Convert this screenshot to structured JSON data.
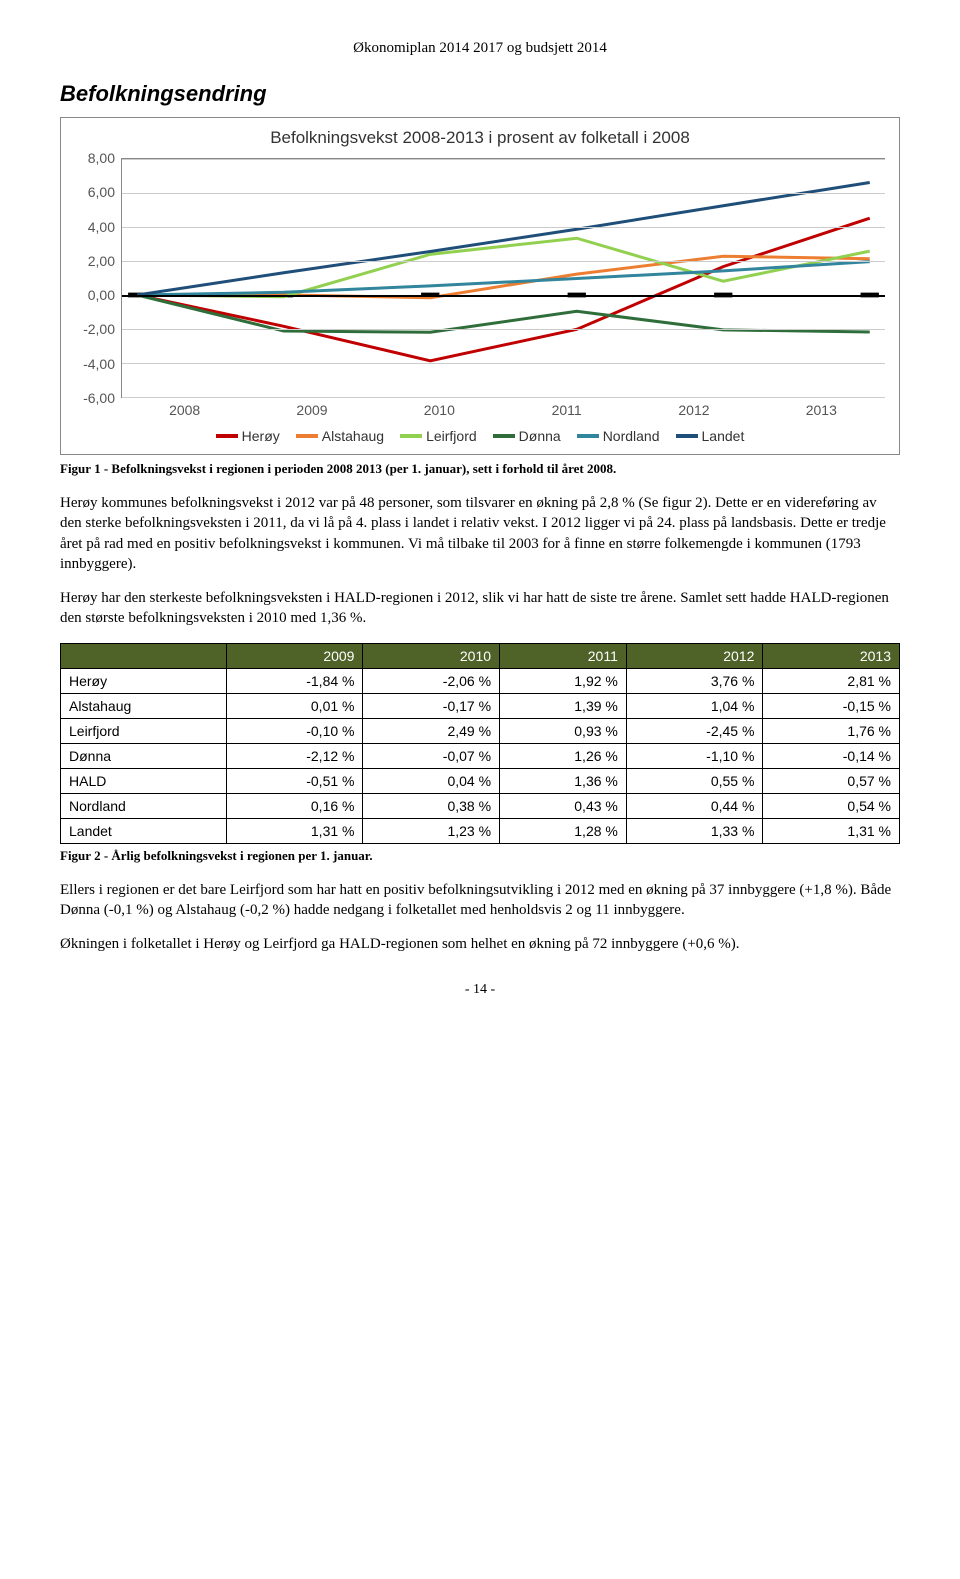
{
  "header": "Økonomiplan 2014 2017 og budsjett 2014",
  "section_title": "Befolkningsendring",
  "chart": {
    "type": "line",
    "title": "Befolkningsvekst 2008-2013 i prosent av folketall i 2008",
    "x_categories": [
      "2008",
      "2009",
      "2010",
      "2011",
      "2012",
      "2013"
    ],
    "y_min": -6.0,
    "y_max": 8.0,
    "y_step": 2.0,
    "y_ticks": [
      "8,00",
      "6,00",
      "4,00",
      "2,00",
      "0,00",
      "-2,00",
      "-4,00",
      "-6,00"
    ],
    "title_fontsize": 17,
    "label_fontsize": 14,
    "background_color": "#ffffff",
    "grid_color": "#cccccc",
    "line_width": 3,
    "series": [
      {
        "name": "Herøy",
        "color": "#c00000",
        "values": [
          0.0,
          -1.84,
          -3.87,
          -2.02,
          1.67,
          4.52
        ]
      },
      {
        "name": "Alstahaug",
        "color": "#ed7d31",
        "values": [
          0.0,
          0.01,
          -0.16,
          1.23,
          2.28,
          2.13
        ]
      },
      {
        "name": "Leirfjord",
        "color": "#92d050",
        "values": [
          0.0,
          -0.1,
          2.39,
          3.34,
          0.81,
          2.58
        ]
      },
      {
        "name": "Dønna",
        "color": "#2f6e3b",
        "values": [
          0.0,
          -2.12,
          -2.19,
          -0.96,
          -2.05,
          -2.18
        ]
      },
      {
        "name": "Nordland",
        "color": "#31859c",
        "values": [
          0.0,
          0.16,
          0.54,
          0.97,
          1.42,
          1.96
        ]
      },
      {
        "name": "Landet",
        "color": "#1f4e79",
        "values": [
          0.0,
          1.31,
          2.56,
          3.87,
          5.25,
          6.62
        ]
      }
    ]
  },
  "fig1_caption": "Figur 1 - Befolkningsvekst i regionen i perioden 2008 2013 (per 1. januar), sett i forhold til året 2008.",
  "para1": "Herøy kommunes befolkningsvekst i 2012 var på 48 personer, som tilsvarer en økning på 2,8 % (Se figur 2). Dette er en videreføring av den sterke befolkningsveksten i 2011, da vi lå på 4. plass i landet i relativ vekst.  I 2012 ligger vi på 24. plass på landsbasis. Dette er tredje året på rad med en positiv befolkningsvekst i kommunen. Vi må tilbake til 2003 for å finne en større folkemengde i kommunen (1793 innbyggere).",
  "para2": "Herøy har den sterkeste befolkningsveksten i HALD-regionen i 2012, slik vi har hatt de siste tre årene. Samlet sett hadde HALD-regionen den største befolkningsveksten i 2010 med 1,36 %.",
  "table": {
    "header_bg": "#4f6228",
    "header_fg": "#ffffff",
    "columns": [
      "",
      "2009",
      "2010",
      "2011",
      "2012",
      "2013"
    ],
    "rows": [
      [
        "Herøy",
        "-1,84 %",
        "-2,06 %",
        "1,92 %",
        "3,76 %",
        "2,81 %"
      ],
      [
        "Alstahaug",
        "0,01 %",
        "-0,17 %",
        "1,39 %",
        "1,04 %",
        "-0,15 %"
      ],
      [
        "Leirfjord",
        "-0,10 %",
        "2,49 %",
        "0,93 %",
        "-2,45 %",
        "1,76 %"
      ],
      [
        "Dønna",
        "-2,12 %",
        "-0,07 %",
        "1,26 %",
        "-1,10 %",
        "-0,14 %"
      ],
      [
        "HALD",
        "-0,51 %",
        "0,04 %",
        "1,36 %",
        "0,55 %",
        "0,57 %"
      ],
      [
        "Nordland",
        "0,16 %",
        "0,38 %",
        "0,43 %",
        "0,44 %",
        "0,54 %"
      ],
      [
        "Landet",
        "1,31 %",
        "1,23 %",
        "1,28 %",
        "1,33 %",
        "1,31 %"
      ]
    ]
  },
  "fig2_caption": "Figur 2 - Årlig befolkningsvekst i regionen per 1. januar.",
  "para3": "Ellers i regionen er det bare Leirfjord som har hatt en positiv befolkningsutvikling i 2012 med en økning på 37 innbyggere (+1,8 %). Både Dønna (-0,1 %) og Alstahaug (-0,2 %) hadde nedgang i folketallet med henholdsvis 2 og 11 innbyggere.",
  "para4": "Økningen i folketallet i Herøy og Leirfjord ga HALD-regionen som helhet en økning på 72 innbyggere (+0,6 %).",
  "page_number": "- 14 -"
}
